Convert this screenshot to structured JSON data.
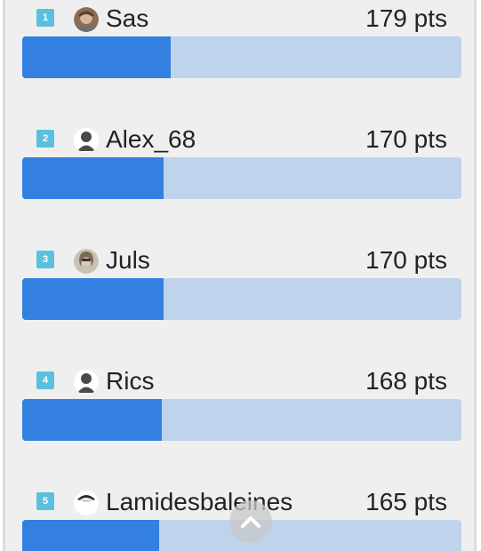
{
  "leaderboard": {
    "unit_suffix": "pts",
    "max_points": 528,
    "entries": [
      {
        "rank": "1",
        "name": "Sas",
        "points": "179 pts",
        "score": 179,
        "avatar": "photo-avatar-icon"
      },
      {
        "rank": "2",
        "name": "Alex_68",
        "points": "170 pts",
        "score": 170,
        "avatar": "default-user-icon"
      },
      {
        "rank": "3",
        "name": "Juls",
        "points": "170 pts",
        "score": 170,
        "avatar": "photo-avatar-icon"
      },
      {
        "rank": "4",
        "name": "Rics",
        "points": "168 pts",
        "score": 168,
        "avatar": "default-user-icon"
      },
      {
        "rank": "5",
        "name": "Lamidesbaleines",
        "points": "165 pts",
        "score": 165,
        "avatar": "photo-avatar-icon"
      }
    ]
  },
  "colors": {
    "badge": "#5bc0de",
    "bar_fill": "#3380e0",
    "bar_track": "#c0d3ec",
    "panel_bg": "#efefef"
  },
  "scroll_top": {
    "icon": "chevron-up-icon"
  }
}
